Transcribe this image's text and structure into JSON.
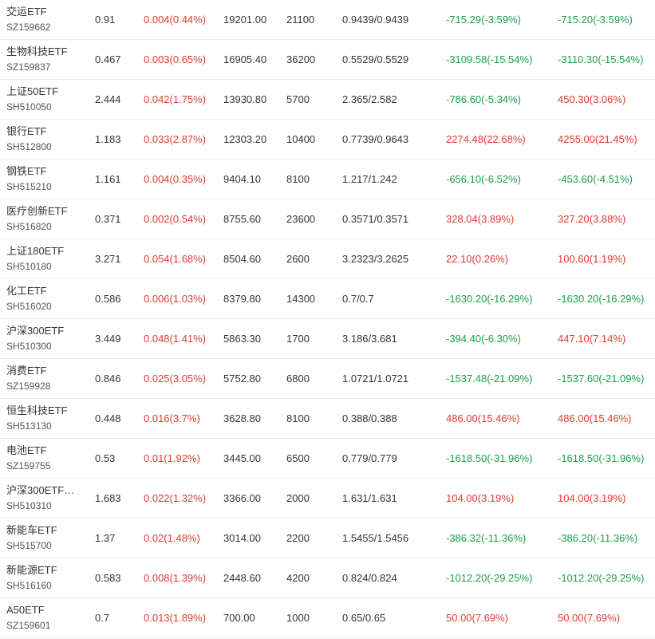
{
  "colors": {
    "up": "#e23a2e",
    "down": "#1aa048",
    "text": "#333333",
    "divider": "#e9e9e9"
  },
  "rows": [
    {
      "name": "交运ETF",
      "code": "SZ159662",
      "price": "0.91",
      "change": "0.004(0.44%)",
      "change_dir": "up",
      "value": "19201.00",
      "shares": "21100",
      "cost": "0.9439/0.9439",
      "float_pl": "-715.29(-3.59%)",
      "float_dir": "down",
      "total_pl": "-715.20(-3.59%)",
      "total_dir": "down"
    },
    {
      "name": "生物科技ETF",
      "code": "SZ159837",
      "price": "0.467",
      "change": "0.003(0.65%)",
      "change_dir": "up",
      "value": "16905.40",
      "shares": "36200",
      "cost": "0.5529/0.5529",
      "float_pl": "-3109.58(-15.54%)",
      "float_dir": "down",
      "total_pl": "-3110.30(-15.54%)",
      "total_dir": "down"
    },
    {
      "name": "上证50ETF",
      "code": "SH510050",
      "price": "2.444",
      "change": "0.042(1.75%)",
      "change_dir": "up",
      "value": "13930.80",
      "shares": "5700",
      "cost": "2.365/2.582",
      "float_pl": "-786.60(-5.34%)",
      "float_dir": "down",
      "total_pl": "450.30(3.06%)",
      "total_dir": "up"
    },
    {
      "name": "银行ETF",
      "code": "SH512800",
      "price": "1.183",
      "change": "0.033(2.87%)",
      "change_dir": "up",
      "value": "12303.20",
      "shares": "10400",
      "cost": "0.7739/0.9643",
      "float_pl": "2274.48(22.68%)",
      "float_dir": "up",
      "total_pl": "4255.00(21.45%)",
      "total_dir": "up"
    },
    {
      "name": "钢铁ETF",
      "code": "SH515210",
      "price": "1.161",
      "change": "0.004(0.35%)",
      "change_dir": "up",
      "value": "9404.10",
      "shares": "8100",
      "cost": "1.217/1.242",
      "float_pl": "-656.10(-6.52%)",
      "float_dir": "down",
      "total_pl": "-453.60(-4.51%)",
      "total_dir": "down"
    },
    {
      "name": "医疗创新ETF",
      "code": "SH516820",
      "price": "0.371",
      "change": "0.002(0.54%)",
      "change_dir": "up",
      "value": "8755.60",
      "shares": "23600",
      "cost": "0.3571/0.3571",
      "float_pl": "328.04(3.89%)",
      "float_dir": "up",
      "total_pl": "327.20(3.88%)",
      "total_dir": "up"
    },
    {
      "name": "上证180ETF",
      "code": "SH510180",
      "price": "3.271",
      "change": "0.054(1.68%)",
      "change_dir": "up",
      "value": "8504.60",
      "shares": "2600",
      "cost": "3.2323/3.2625",
      "float_pl": "22.10(0.26%)",
      "float_dir": "up",
      "total_pl": "100.60(1.19%)",
      "total_dir": "up"
    },
    {
      "name": "化工ETF",
      "code": "SH516020",
      "price": "0.586",
      "change": "0.006(1.03%)",
      "change_dir": "up",
      "value": "8379.80",
      "shares": "14300",
      "cost": "0.7/0.7",
      "float_pl": "-1630.20(-16.29%)",
      "float_dir": "down",
      "total_pl": "-1630.20(-16.29%)",
      "total_dir": "down"
    },
    {
      "name": "沪深300ETF",
      "code": "SH510300",
      "price": "3.449",
      "change": "0.048(1.41%)",
      "change_dir": "up",
      "value": "5863.30",
      "shares": "1700",
      "cost": "3.186/3.681",
      "float_pl": "-394.40(-6.30%)",
      "float_dir": "down",
      "total_pl": "447.10(7.14%)",
      "total_dir": "up"
    },
    {
      "name": "消费ETF",
      "code": "SZ159928",
      "price": "0.846",
      "change": "0.025(3.05%)",
      "change_dir": "up",
      "value": "5752.80",
      "shares": "6800",
      "cost": "1.0721/1.0721",
      "float_pl": "-1537.48(-21.09%)",
      "float_dir": "down",
      "total_pl": "-1537.60(-21.09%)",
      "total_dir": "down"
    },
    {
      "name": "恒生科技ETF",
      "code": "SH513130",
      "price": "0.448",
      "change": "0.016(3.7%)",
      "change_dir": "up",
      "value": "3628.80",
      "shares": "8100",
      "cost": "0.388/0.388",
      "float_pl": "486.00(15.46%)",
      "float_dir": "up",
      "total_pl": "486.00(15.46%)",
      "total_dir": "up"
    },
    {
      "name": "电池ETF",
      "code": "SZ159755",
      "price": "0.53",
      "change": "0.01(1.92%)",
      "change_dir": "up",
      "value": "3445.00",
      "shares": "6500",
      "cost": "0.779/0.779",
      "float_pl": "-1618.50(-31.96%)",
      "float_dir": "down",
      "total_pl": "-1618.50(-31.96%)",
      "total_dir": "down"
    },
    {
      "name": "沪深300ETF…",
      "code": "SH510310",
      "price": "1.683",
      "change": "0.022(1.32%)",
      "change_dir": "up",
      "value": "3366.00",
      "shares": "2000",
      "cost": "1.631/1.631",
      "float_pl": "104.00(3.19%)",
      "float_dir": "up",
      "total_pl": "104.00(3.19%)",
      "total_dir": "up"
    },
    {
      "name": "新能车ETF",
      "code": "SH515700",
      "price": "1.37",
      "change": "0.02(1.48%)",
      "change_dir": "up",
      "value": "3014.00",
      "shares": "2200",
      "cost": "1.5455/1.5456",
      "float_pl": "-386.32(-11.36%)",
      "float_dir": "down",
      "total_pl": "-386.20(-11.36%)",
      "total_dir": "down"
    },
    {
      "name": "新能源ETF",
      "code": "SH516160",
      "price": "0.583",
      "change": "0.008(1.39%)",
      "change_dir": "up",
      "value": "2448.60",
      "shares": "4200",
      "cost": "0.824/0.824",
      "float_pl": "-1012.20(-29.25%)",
      "float_dir": "down",
      "total_pl": "-1012.20(-29.25%)",
      "total_dir": "down"
    },
    {
      "name": "A50ETF",
      "code": "SZ159601",
      "price": "0.7",
      "change": "0.013(1.89%)",
      "change_dir": "up",
      "value": "700.00",
      "shares": "1000",
      "cost": "0.65/0.65",
      "float_pl": "50.00(7.69%)",
      "float_dir": "up",
      "total_pl": "50.00(7.69%)",
      "total_dir": "up"
    }
  ]
}
